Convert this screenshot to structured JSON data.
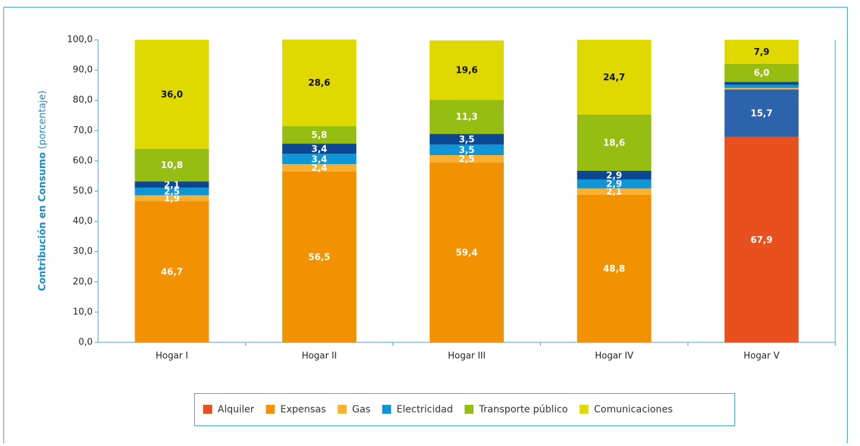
{
  "chart_data": {
    "type": "stacked_bar",
    "y_label": "Contribución en Consumo",
    "y_label_note": "(porcentaje)",
    "categories": [
      "Hogar I",
      "Hogar II",
      "Hogar III",
      "Hogar IV",
      "Hogar V"
    ],
    "ylim": [
      0,
      100
    ],
    "yticks": [
      {
        "value": 0,
        "label": "0,0"
      },
      {
        "value": 10,
        "label": "10,0"
      },
      {
        "value": 20,
        "label": "20,0"
      },
      {
        "value": 30,
        "label": "30,0"
      },
      {
        "value": 40,
        "label": "40,0"
      },
      {
        "value": 50,
        "label": "50,0"
      },
      {
        "value": 60,
        "label": "60,0"
      },
      {
        "value": 70,
        "label": "70,0"
      },
      {
        "value": 80,
        "label": "80,0"
      },
      {
        "value": 90,
        "label": "90,0"
      },
      {
        "value": 100,
        "label": "100,0"
      }
    ],
    "series": [
      {
        "name": "Alquiler",
        "color": "#e8501f",
        "values": [
          0,
          0,
          0,
          0,
          67.9
        ],
        "value_labels": [
          null,
          null,
          null,
          null,
          "67,9"
        ]
      },
      {
        "name": null,
        "color": "#2d63ab",
        "values": [
          0,
          0,
          0,
          0,
          15.7
        ],
        "value_labels": [
          null,
          null,
          null,
          null,
          "15,7"
        ]
      },
      {
        "name": "Expensas",
        "color": "#f39200",
        "values": [
          46.7,
          56.5,
          59.4,
          48.8,
          0
        ],
        "value_labels": [
          "46,7",
          "56,5",
          "59,4",
          "48,8",
          null
        ]
      },
      {
        "name": "Gas",
        "color": "#f8b133",
        "values": [
          1.9,
          2.4,
          2.5,
          2.1,
          0.5
        ],
        "value_labels": [
          "1,9",
          "2,4",
          "2,5",
          "2,1",
          null
        ]
      },
      {
        "name": "Electricidad",
        "color": "#0f96d6",
        "values": [
          2.5,
          3.4,
          3.5,
          2.9,
          1.0
        ],
        "value_labels": [
          "2,5",
          "3,4",
          "3,5",
          "2,9",
          null
        ]
      },
      {
        "name": null,
        "color": "#0c4793",
        "values": [
          2.1,
          3.4,
          3.5,
          2.9,
          1.0
        ],
        "value_labels": [
          "2,1",
          "3,4",
          "3,5",
          "2,9",
          null
        ]
      },
      {
        "name": "Transporte público",
        "color": "#95bd12",
        "values": [
          10.8,
          5.8,
          11.3,
          18.6,
          6.0
        ],
        "value_labels": [
          "10,8",
          "5,8",
          "11,3",
          "18,6",
          "6,0"
        ]
      },
      {
        "name": "Comunicaciones",
        "color": "#dfd900",
        "values": [
          36.0,
          28.6,
          19.6,
          24.7,
          7.9
        ],
        "value_labels": [
          "36,0",
          "28,6",
          "19,6",
          "24,7",
          "7,9"
        ]
      }
    ]
  }
}
